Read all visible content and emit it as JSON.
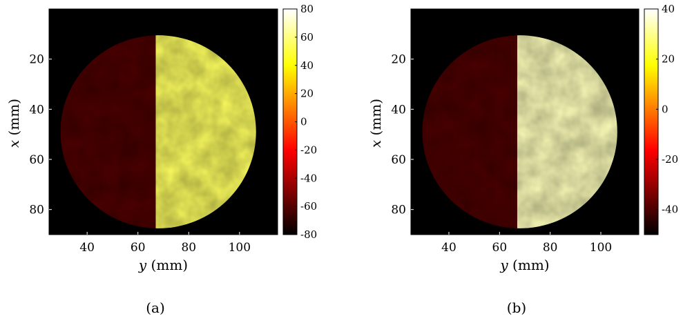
{
  "chart_data": [
    {
      "type": "heatmap",
      "panel_label": "(a)",
      "xlabel_var": "y",
      "xlabel_unit": "(mm)",
      "ylabel_var": "x",
      "ylabel_unit": "(mm)",
      "xlim": [
        25,
        115
      ],
      "ylim": [
        90,
        0
      ],
      "x_ticks": [
        40,
        60,
        80,
        100
      ],
      "y_ticks": [
        20,
        40,
        60,
        80
      ],
      "disk_center": {
        "y": 68,
        "x": 49
      },
      "disk_radius": 38.5,
      "boundary_y": 67,
      "left_value": -62,
      "right_value": 55,
      "colorbar": {
        "min": -80,
        "max": 80,
        "ticks": [
          80,
          60,
          40,
          20,
          0,
          -20,
          -40,
          -60,
          -80
        ]
      },
      "colormap": "hot"
    },
    {
      "type": "heatmap",
      "panel_label": "(b)",
      "xlabel_var": "y",
      "xlabel_unit": "(mm)",
      "ylabel_var": "x",
      "ylabel_unit": "(mm)",
      "xlim": [
        25,
        115
      ],
      "ylim": [
        90,
        0
      ],
      "x_ticks": [
        40,
        60,
        80,
        100
      ],
      "y_ticks": [
        20,
        40,
        60,
        80
      ],
      "disk_center": {
        "y": 68,
        "x": 49
      },
      "disk_radius": 38.5,
      "boundary_y": 67,
      "left_value": -40,
      "right_value": 34,
      "colorbar": {
        "min": -50,
        "max": 40,
        "ticks": [
          40,
          20,
          0,
          -20,
          -40
        ]
      },
      "colormap": "hot"
    }
  ]
}
